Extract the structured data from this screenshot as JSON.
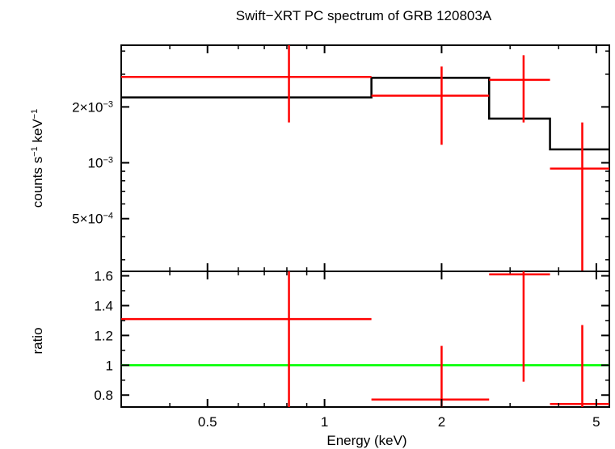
{
  "chart_data": [
    {
      "type": "step+errorbar",
      "title": "Swift−XRT PC spectrum of GRB 120803A",
      "ylabel_parts": [
        "counts s",
        "−1",
        " keV",
        "−1"
      ],
      "xscale": "log",
      "yscale": "log",
      "xlim": [
        0.3,
        5.4
      ],
      "ylim": [
        0.00026,
        0.0043
      ],
      "y_ticks": [
        {
          "value": 0.002,
          "label": "2×10",
          "exp": "−3"
        },
        {
          "value": 0.001,
          "label": "10",
          "exp": "−3"
        },
        {
          "value": 0.0005,
          "label": "5×10",
          "exp": "−4"
        }
      ],
      "model": {
        "color": "#000000",
        "steps": [
          {
            "x0": 0.3,
            "x1": 1.32,
            "y": 0.00225
          },
          {
            "x0": 1.32,
            "x1": 2.65,
            "y": 0.00287
          },
          {
            "x0": 2.65,
            "x1": 3.8,
            "y": 0.00173
          },
          {
            "x0": 3.8,
            "x1": 5.4,
            "y": 0.00118
          }
        ]
      },
      "data_points": {
        "color": "#ff0000",
        "points": [
          {
            "x": 0.81,
            "xlo": 0.3,
            "xhi": 1.32,
            "y": 0.0029,
            "ylo": 0.00165,
            "yhi": 0.0043
          },
          {
            "x": 2.0,
            "xlo": 1.32,
            "xhi": 2.65,
            "y": 0.0023,
            "ylo": 0.00125,
            "yhi": 0.0033
          },
          {
            "x": 3.25,
            "xlo": 2.65,
            "xhi": 3.8,
            "y": 0.0028,
            "ylo": 0.00165,
            "yhi": 0.0038
          },
          {
            "x": 4.6,
            "xlo": 3.8,
            "xhi": 5.4,
            "y": 0.00093,
            "ylo": 0.00026,
            "yhi": 0.00165
          }
        ]
      }
    },
    {
      "type": "errorbar",
      "xlabel": "Energy (keV)",
      "ylabel": "ratio",
      "xscale": "log",
      "xlim": [
        0.3,
        5.4
      ],
      "ylim": [
        0.72,
        1.63
      ],
      "x_ticks": [
        {
          "value": 0.5,
          "label": "0.5"
        },
        {
          "value": 1,
          "label": "1"
        },
        {
          "value": 2,
          "label": "2"
        },
        {
          "value": 5,
          "label": "5"
        }
      ],
      "y_ticks": [
        {
          "value": 0.8,
          "label": "0.8"
        },
        {
          "value": 1.0,
          "label": "1"
        },
        {
          "value": 1.2,
          "label": "1.2"
        },
        {
          "value": 1.4,
          "label": "1.4"
        },
        {
          "value": 1.6,
          "label": "1.6"
        }
      ],
      "reference_line": {
        "y": 1.0,
        "color": "#00ff00"
      },
      "data_points": {
        "color": "#ff0000",
        "points": [
          {
            "x": 0.81,
            "xlo": 0.3,
            "xhi": 1.32,
            "y": 1.31,
            "ylo": 0.72,
            "yhi": 1.63
          },
          {
            "x": 2.0,
            "xlo": 1.32,
            "xhi": 2.65,
            "y": 0.77,
            "ylo": 0.72,
            "yhi": 1.13
          },
          {
            "x": 3.25,
            "xlo": 2.65,
            "xhi": 3.8,
            "y": 1.61,
            "ylo": 0.89,
            "yhi": 1.63
          },
          {
            "x": 4.6,
            "xlo": 3.8,
            "xhi": 5.4,
            "y": 0.74,
            "ylo": 0.72,
            "yhi": 1.27
          }
        ]
      }
    }
  ]
}
